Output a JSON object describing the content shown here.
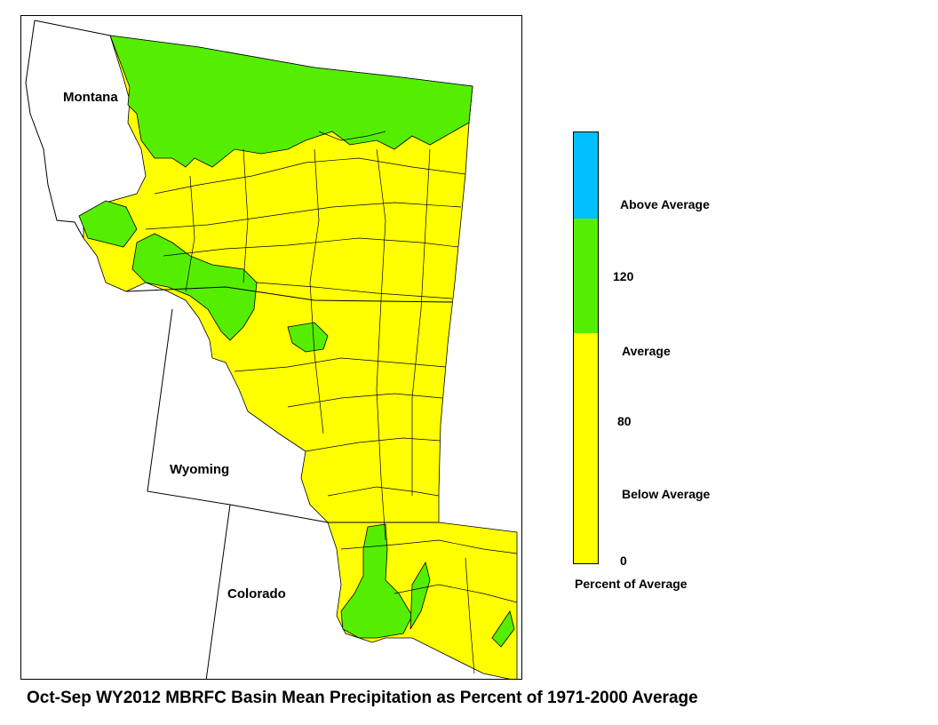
{
  "caption": "Oct-Sep WY2012 MBRFC Basin Mean Precipitation as Percent of 1971-2000 Average",
  "states": [
    {
      "name": "Montana"
    },
    {
      "name": "Wyoming"
    },
    {
      "name": "Colorado"
    }
  ],
  "legend": {
    "title": "Percent of Average",
    "max": 150,
    "breaks": [
      "0",
      "80",
      "120"
    ],
    "categories": [
      {
        "label": "Below Average",
        "from": 0,
        "to": 80,
        "color": "#FFFF00"
      },
      {
        "label": "Average",
        "from": 80,
        "to": 120,
        "color": "#55EE00"
      },
      {
        "label": "Above Average",
        "from": 120,
        "to": 150,
        "color": "#00BFFF"
      }
    ]
  },
  "colors": {
    "below": "#FFFF00",
    "average": "#55EE00",
    "above": "#00BFFF",
    "boundary": "#000000"
  }
}
